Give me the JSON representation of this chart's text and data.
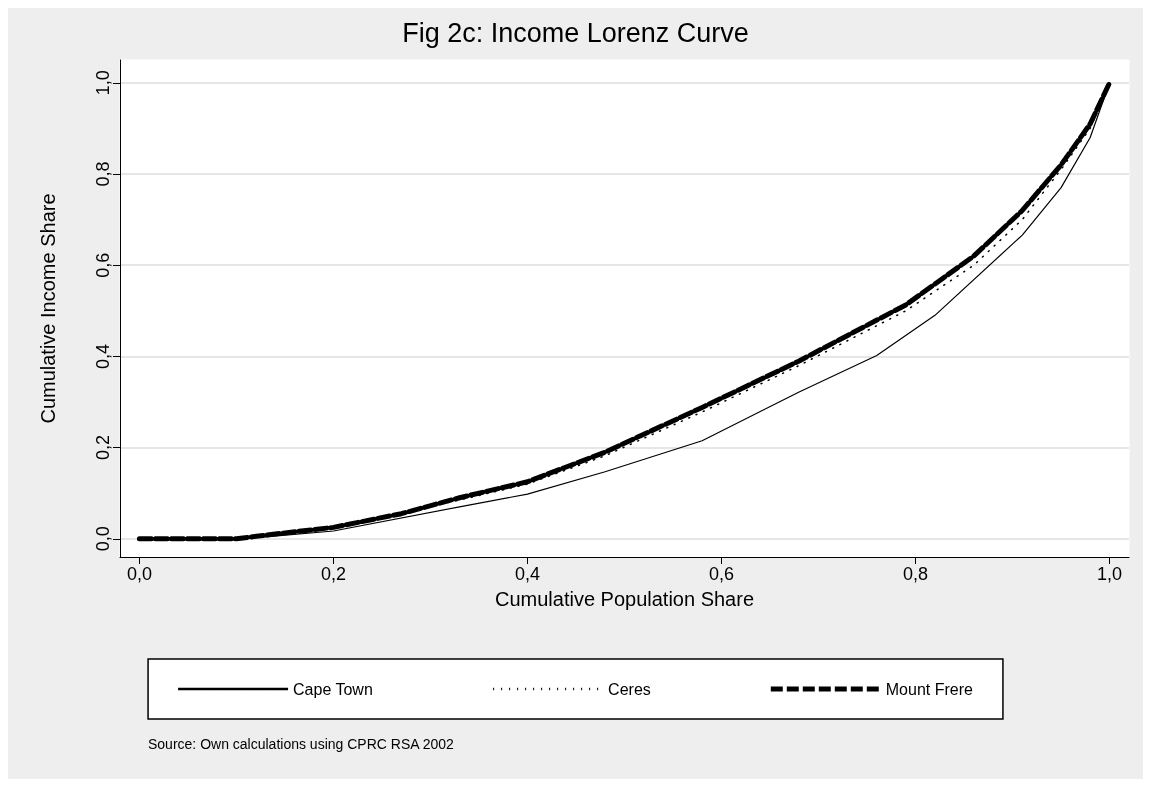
{
  "chart_data": {
    "type": "line",
    "title": "Fig 2c: Income Lorenz Curve",
    "xlabel": "Cumulative Population Share",
    "ylabel": "Cumulative Income Share",
    "annotations": [
      "Source: Own calculations using CPRC RSA 2002"
    ],
    "xlim": [
      -0.02,
      1.02
    ],
    "ylim": [
      -0.04,
      1.05
    ],
    "xticks": [
      {
        "value": 0,
        "label": "0,0"
      },
      {
        "value": 0.2,
        "label": "0,2"
      },
      {
        "value": 0.4,
        "label": "0,4"
      },
      {
        "value": 0.6,
        "label": "0,6"
      },
      {
        "value": 0.8,
        "label": "0,8"
      },
      {
        "value": 1,
        "label": "1,0"
      }
    ],
    "yticks": [
      {
        "value": 0,
        "label": "0,0"
      },
      {
        "value": 0.2,
        "label": "0,2"
      },
      {
        "value": 0.4,
        "label": "0,4"
      },
      {
        "value": 0.6,
        "label": "0,6"
      },
      {
        "value": 0.8,
        "label": "0,8"
      },
      {
        "value": 1,
        "label": "1,0"
      }
    ],
    "grid": "y",
    "legend": "bottom",
    "marker": "none",
    "series": [
      {
        "name": "Cape Town",
        "color": "#000000",
        "line_style": "solid",
        "x": [
          0,
          0.1,
          0.13,
          0.2,
          0.33,
          0.4,
          0.48,
          0.58,
          0.68,
          0.76,
          0.82,
          0.91,
          0.95,
          0.98,
          1
        ],
        "values": [
          0,
          0,
          0.004,
          0.017,
          0.07,
          0.098,
          0.147,
          0.215,
          0.322,
          0.402,
          0.49,
          0.666,
          0.77,
          0.88,
          1
        ]
      },
      {
        "name": "Ceres",
        "color": "#000000",
        "line_style": "dotted",
        "x": [
          0,
          0.1,
          0.13,
          0.2,
          0.33,
          0.4,
          0.48,
          0.58,
          0.68,
          0.79,
          0.86,
          0.91,
          0.95,
          0.98,
          1
        ],
        "values": [
          0,
          0,
          0.007,
          0.023,
          0.085,
          0.12,
          0.182,
          0.278,
          0.38,
          0.5,
          0.6,
          0.7,
          0.81,
          0.9,
          1
        ]
      },
      {
        "name": "Mount Frere",
        "color": "#000000",
        "line_style": "dashed",
        "x": [
          0,
          0.1,
          0.13,
          0.2,
          0.27,
          0.33,
          0.4,
          0.48,
          0.58,
          0.68,
          0.79,
          0.86,
          0.91,
          0.95,
          0.98,
          1
        ],
        "values": [
          0,
          0,
          0.008,
          0.025,
          0.055,
          0.09,
          0.125,
          0.19,
          0.288,
          0.39,
          0.513,
          0.62,
          0.72,
          0.82,
          0.91,
          1
        ]
      }
    ]
  }
}
